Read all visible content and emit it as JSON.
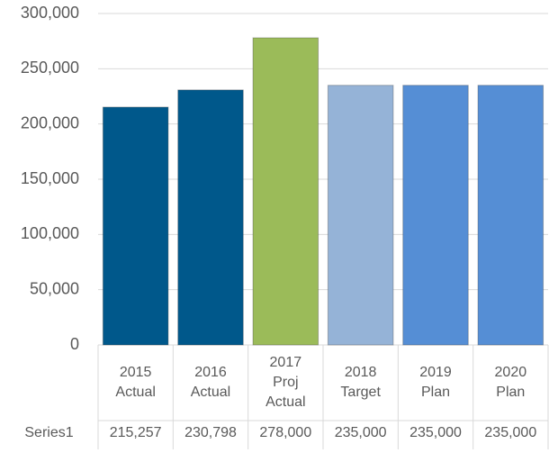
{
  "chart_data": {
    "type": "bar",
    "categories": [
      "2015 Actual",
      "2016 Actual",
      "2017 Proj Actual",
      "2018 Target",
      "2019 Plan",
      "2020 Plan"
    ],
    "series": [
      {
        "name": "Series1",
        "values": [
          215257,
          230798,
          278000,
          235000,
          235000,
          235000
        ],
        "value_labels": [
          "215,257",
          "230,798",
          "278,000",
          "235,000",
          "235,000",
          "235,000"
        ],
        "colors": [
          "#00588b",
          "#00588b",
          "#9bbb59",
          "#95b3d7",
          "#558ed5",
          "#558ed5"
        ]
      }
    ],
    "ylim": [
      0,
      300000
    ],
    "yticks": [
      0,
      {
        "value": 50000,
        "label": "50,000"
      },
      {
        "value": 100000,
        "label": "100,000"
      },
      {
        "value": 150000,
        "label": "150,000"
      },
      {
        "value": 200000,
        "label": "200,000"
      },
      {
        "value": 250000,
        "label": "250,000"
      },
      {
        "value": 300000,
        "label": "300,000"
      }
    ],
    "grid": true,
    "data_table": true
  }
}
